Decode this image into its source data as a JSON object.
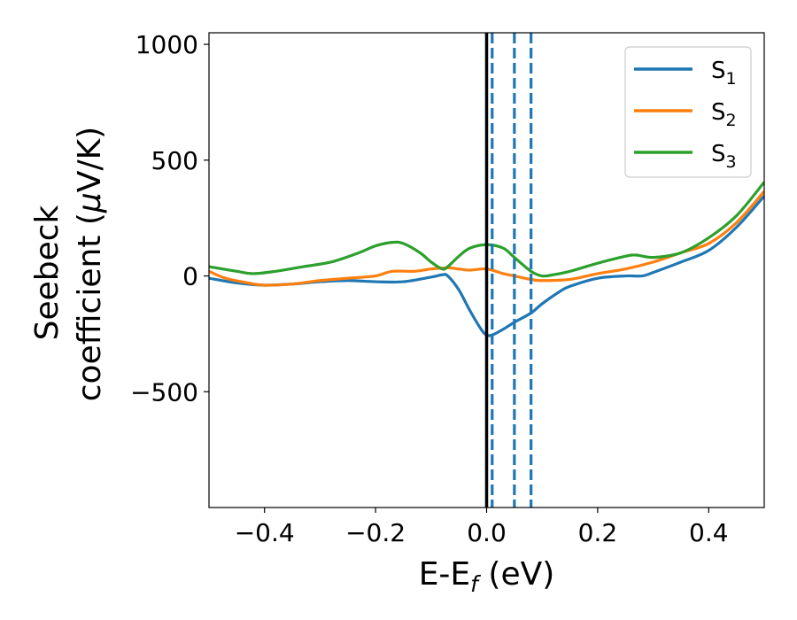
{
  "chart_data": {
    "type": "line",
    "xlabel": {
      "main": "E-E",
      "sub": "f",
      "unit": "(eV)"
    },
    "ylabel": {
      "line1": "Seebeck",
      "line2": "coefficient  (",
      "mu": "μ",
      "line2_end": "V/K)"
    },
    "xlim": [
      -0.5,
      0.5
    ],
    "ylim": [
      -1000,
      1050
    ],
    "xticks": [
      -0.4,
      -0.2,
      0.0,
      0.2,
      0.4
    ],
    "xtick_labels": [
      "−0.4",
      "−0.2",
      "0.0",
      "0.2",
      "0.4"
    ],
    "yticks": [
      -500,
      0,
      500,
      1000
    ],
    "ytick_labels": [
      "−500",
      "0",
      "500",
      "1000"
    ],
    "legend_position": "top-right",
    "series": [
      {
        "name": "S",
        "sub": "1",
        "color": "#1f77b4",
        "x": [
          -0.5,
          -0.45,
          -0.4,
          -0.35,
          -0.3,
          -0.25,
          -0.2,
          -0.15,
          -0.1,
          -0.08,
          -0.07,
          -0.05,
          -0.03,
          -0.01,
          0.0,
          0.01,
          0.03,
          0.05,
          0.08,
          0.1,
          0.13,
          0.15,
          0.2,
          0.25,
          0.28,
          0.3,
          0.35,
          0.4,
          0.45,
          0.5
        ],
        "values": [
          -10,
          -30,
          -40,
          -35,
          -25,
          -20,
          -25,
          -25,
          -5,
          5,
          0,
          -60,
          -150,
          -230,
          -255,
          -255,
          -230,
          -200,
          -160,
          -120,
          -70,
          -45,
          -10,
          0,
          0,
          15,
          60,
          110,
          210,
          345
        ]
      },
      {
        "name": "S",
        "sub": "2",
        "color": "#ff7f0e",
        "x": [
          -0.5,
          -0.47,
          -0.43,
          -0.4,
          -0.35,
          -0.3,
          -0.25,
          -0.2,
          -0.17,
          -0.13,
          -0.1,
          -0.07,
          -0.05,
          -0.03,
          0.0,
          0.03,
          0.05,
          0.08,
          0.1,
          0.15,
          0.2,
          0.25,
          0.3,
          0.35,
          0.4,
          0.45,
          0.5
        ],
        "values": [
          20,
          -10,
          -30,
          -40,
          -35,
          -20,
          -10,
          0,
          20,
          20,
          30,
          35,
          30,
          25,
          30,
          10,
          0,
          -15,
          -20,
          -15,
          10,
          30,
          60,
          100,
          140,
          230,
          365
        ]
      },
      {
        "name": "S",
        "sub": "3",
        "color": "#2ca02c",
        "x": [
          -0.5,
          -0.45,
          -0.42,
          -0.38,
          -0.33,
          -0.28,
          -0.23,
          -0.2,
          -0.17,
          -0.15,
          -0.12,
          -0.1,
          -0.08,
          -0.07,
          -0.05,
          -0.03,
          0.0,
          0.03,
          0.05,
          0.08,
          0.1,
          0.12,
          0.15,
          0.2,
          0.25,
          0.27,
          0.3,
          0.35,
          0.4,
          0.45,
          0.5
        ],
        "values": [
          40,
          20,
          10,
          20,
          40,
          60,
          100,
          130,
          145,
          140,
          100,
          60,
          30,
          40,
          85,
          120,
          135,
          120,
          80,
          20,
          0,
          5,
          20,
          55,
          85,
          90,
          80,
          100,
          165,
          260,
          405
        ]
      }
    ],
    "vertical_lines": [
      {
        "x": 0.0,
        "style": "solid",
        "color": "#000000"
      },
      {
        "x": 0.01,
        "style": "dashed",
        "color": "#1f77b4"
      },
      {
        "x": 0.05,
        "style": "dashed",
        "color": "#1f77b4"
      },
      {
        "x": 0.08,
        "style": "dashed",
        "color": "#1f77b4"
      }
    ]
  }
}
